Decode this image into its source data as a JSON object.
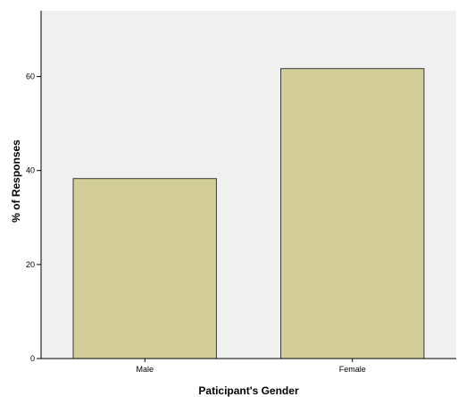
{
  "chart_data": {
    "type": "bar",
    "categories": [
      "Male",
      "Female"
    ],
    "values": [
      38.3,
      61.7
    ],
    "xlabel": "Paticipant's Gender",
    "ylabel": "% of Responses",
    "ylim": [
      0,
      74
    ],
    "yticks": [
      0,
      20,
      40,
      60
    ],
    "grid": false,
    "colors": {
      "plot_background": "#f0f0f0",
      "bar_fill": "#d3ce98",
      "bar_stroke": "#3a3a3a",
      "axis": "#000000"
    }
  }
}
